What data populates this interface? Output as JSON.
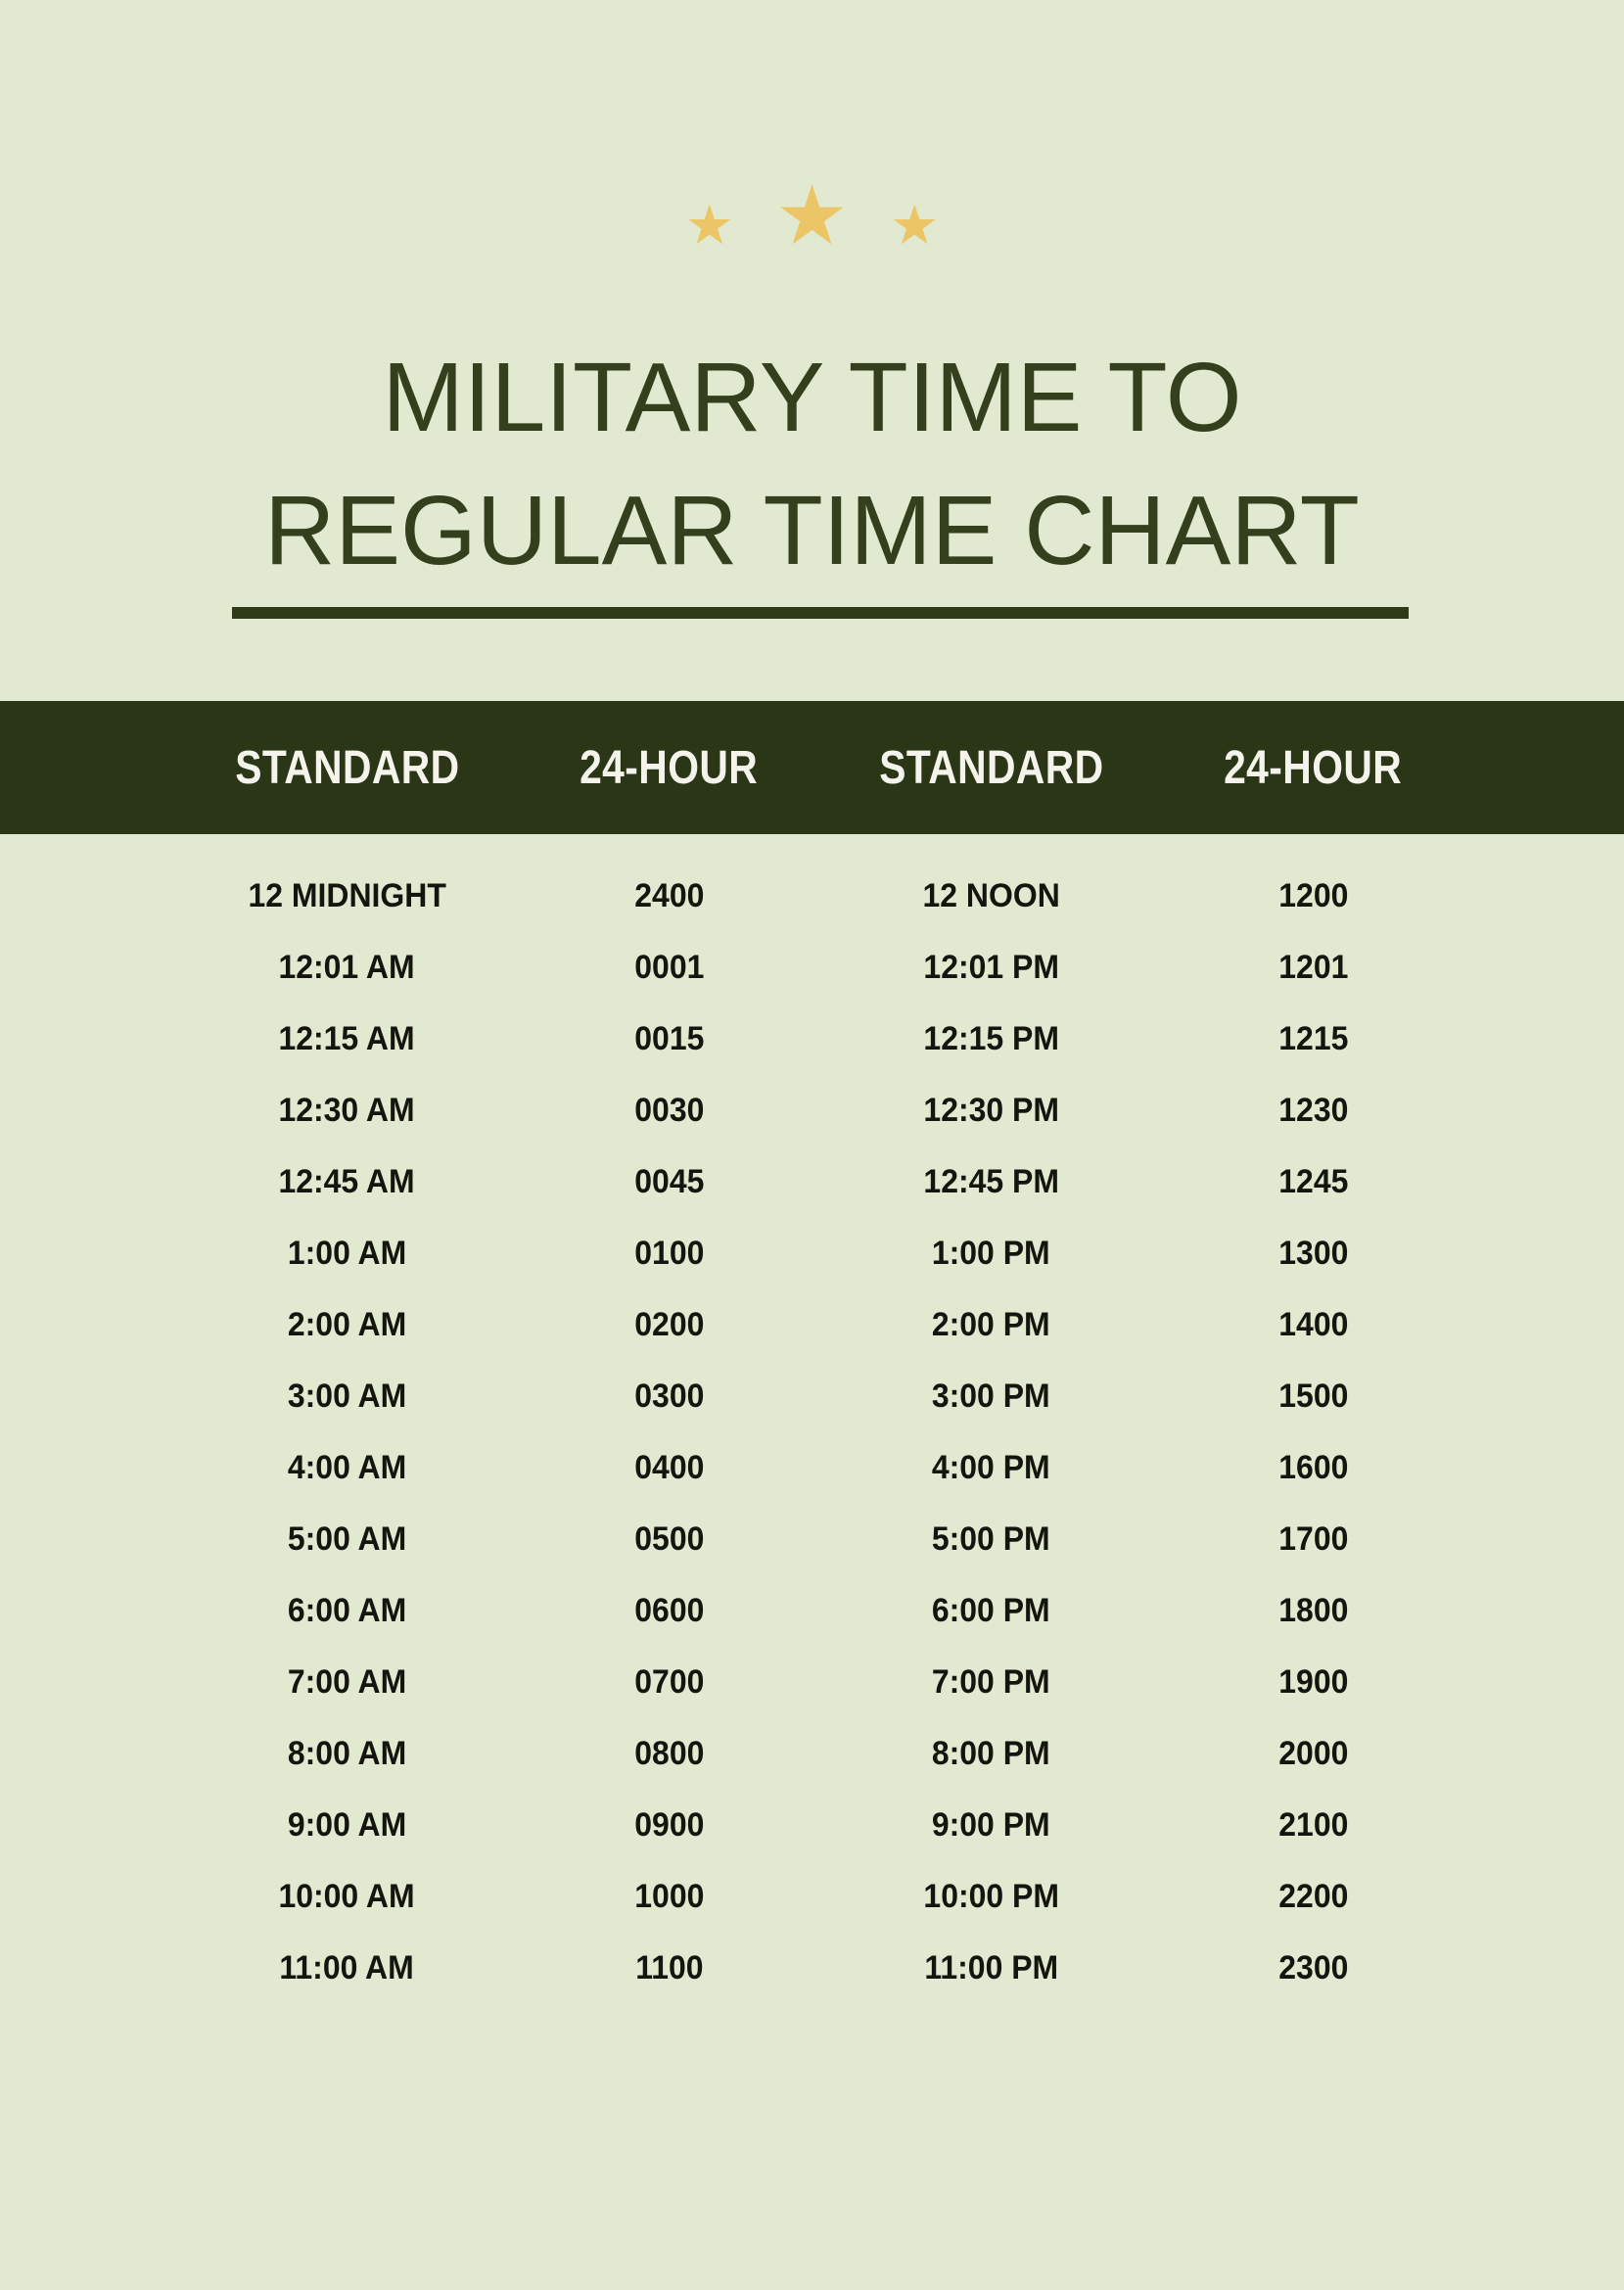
{
  "poster": {
    "title_line1": "MILITARY TIME TO",
    "title_line2": "REGULAR TIME CHART"
  },
  "icons": {
    "star": "★"
  },
  "colors": {
    "background": "#e2e9d1",
    "header_bar": "#2b3616",
    "title": "#333f1d",
    "underline": "#2e3a18",
    "header_text": "#f5f4ec",
    "cell_text": "#15150f",
    "star": "#ecc567"
  },
  "table": {
    "headers": [
      "STANDARD",
      "24-HOUR",
      "STANDARD",
      "24-HOUR"
    ],
    "rows": [
      [
        "12 MIDNIGHT",
        "2400",
        "12 NOON",
        "1200"
      ],
      [
        "12:01 AM",
        "0001",
        "12:01 PM",
        "1201"
      ],
      [
        "12:15 AM",
        "0015",
        "12:15 PM",
        "1215"
      ],
      [
        "12:30 AM",
        "0030",
        "12:30 PM",
        "1230"
      ],
      [
        "12:45 AM",
        "0045",
        "12:45 PM",
        "1245"
      ],
      [
        "1:00 AM",
        "0100",
        "1:00 PM",
        "1300"
      ],
      [
        "2:00 AM",
        "0200",
        "2:00 PM",
        "1400"
      ],
      [
        "3:00 AM",
        "0300",
        "3:00 PM",
        "1500"
      ],
      [
        "4:00 AM",
        "0400",
        "4:00 PM",
        "1600"
      ],
      [
        "5:00 AM",
        "0500",
        "5:00 PM",
        "1700"
      ],
      [
        "6:00 AM",
        "0600",
        "6:00 PM",
        "1800"
      ],
      [
        "7:00 AM",
        "0700",
        "7:00 PM",
        "1900"
      ],
      [
        "8:00 AM",
        "0800",
        "8:00 PM",
        "2000"
      ],
      [
        "9:00 AM",
        "0900",
        "9:00 PM",
        "2100"
      ],
      [
        "10:00 AM",
        "1000",
        "10:00 PM",
        "2200"
      ],
      [
        "11:00 AM",
        "1100",
        "11:00 PM",
        "2300"
      ]
    ]
  }
}
